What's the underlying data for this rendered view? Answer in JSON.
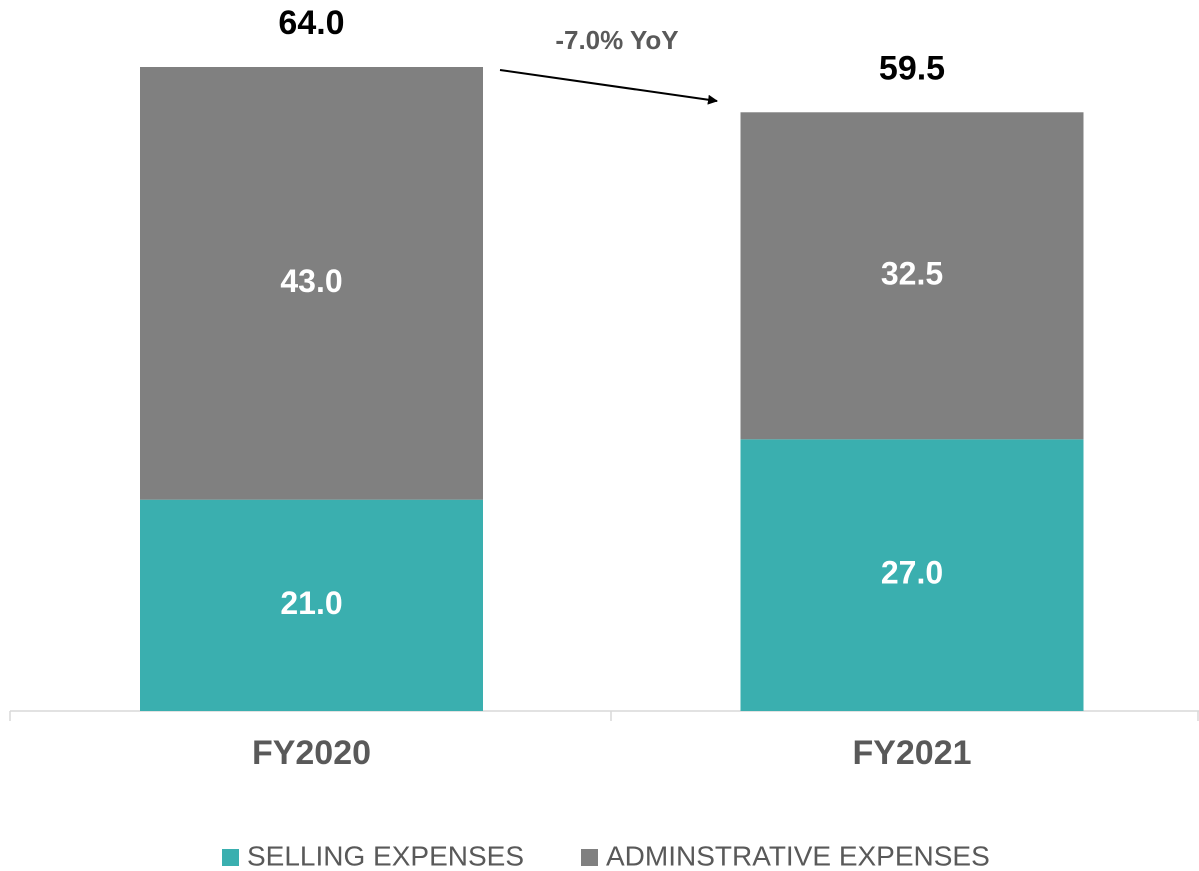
{
  "chart_data": {
    "type": "stacked_bar",
    "categories": [
      "FY2020",
      "FY2021"
    ],
    "series": [
      {
        "name": "SELLING EXPENSES",
        "color": "#3aafaf",
        "values": [
          21,
          27
        ],
        "value_labels": [
          "21.0",
          "27.0"
        ]
      },
      {
        "name": "ADMINSTRATIVE EXPENSES",
        "color": "#808080",
        "values": [
          43,
          32.5
        ],
        "value_labels": [
          "43.0",
          "32.5"
        ]
      }
    ],
    "totals": [
      64,
      59.5
    ],
    "total_labels": [
      "64.0",
      "59.5"
    ],
    "annotation": "-7.0% YoY",
    "legend": "bottom"
  }
}
